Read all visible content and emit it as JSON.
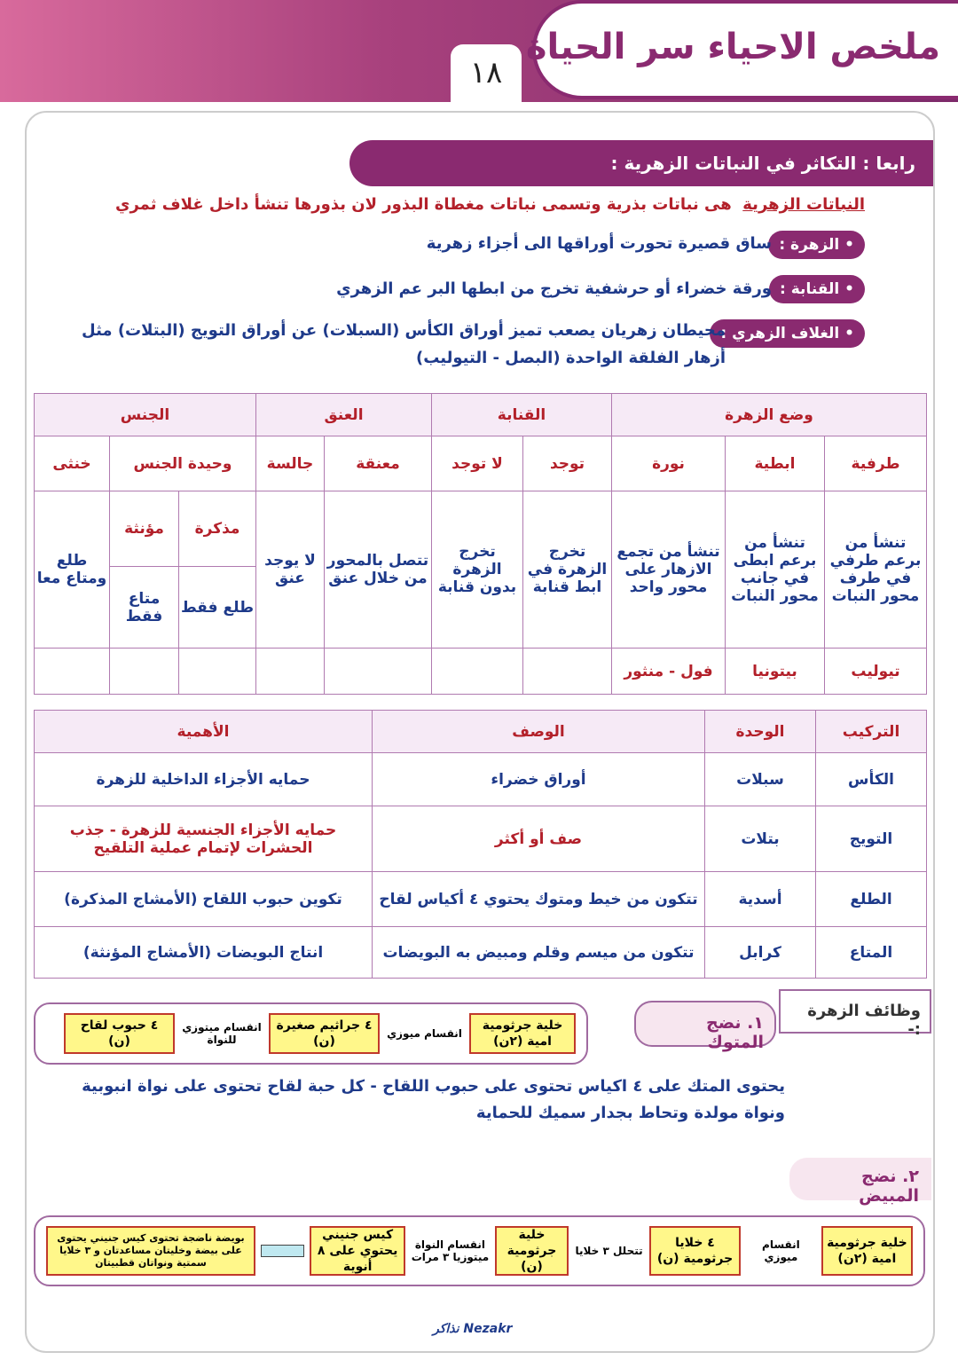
{
  "header": {
    "title": "ملخص الاحياء سر الحياة",
    "page_number": "١٨"
  },
  "section": {
    "title": "رابعا : التكاثر في النباتات الزهرية :"
  },
  "definition": {
    "term": "النباتات الزهرية",
    "text": "هى نباتات بذرية وتسمى نباتات مغطاة البذور لان بذورها تنشأ داخل غلاف ثمري"
  },
  "terms": [
    {
      "label": "• الزهرة :",
      "text": "ساق قصيرة تحورت أوراقها الى أجزاء زهرية"
    },
    {
      "label": "• القنابة :",
      "text": "ورقة خضراء أو حرشفية تخرج من ابطها البر عم الزهري"
    },
    {
      "label": "• الغلاف الزهري :",
      "text": "محيطان زهريان يصعب تميز أوراق الكأس (السبلات) عن أوراق التويج (البتلات) مثل",
      "text2": "أزهار الفلقة الواحدة (البصل - التيوليب)"
    }
  ],
  "table1": {
    "groups": [
      "وضع الزهرة",
      "القنابة",
      "العنق",
      "الجنس"
    ],
    "sub": [
      "طرفية",
      "ابطية",
      "نورة",
      "توجد",
      "لا توجد",
      "معنقة",
      "جالسة",
      "وحيدة الجنس",
      "خنثى"
    ],
    "desc": [
      "تنشأ من برعم طرفي في طرف محور النبات",
      "تنشأ من برعم ابطى في جانب محور النبات",
      "تنشأ من تجمع الازهار على محور واحد",
      "تخرج الزهرة في ابط قنابة",
      "تخرج الزهرة بدون قنابة",
      "تتصل بالمحور من خلال عنق",
      "لا يوجد عنق",
      "مذكرة",
      "مؤنثة",
      "طلع ومتاع معا"
    ],
    "unisex": [
      "طلع فقط",
      "متاع فقط"
    ],
    "examples": [
      "تيوليب",
      "بيتونيا",
      "فول - منثور"
    ]
  },
  "table2": {
    "headers": [
      "التركيب",
      "الوحدة",
      "الوصف",
      "الأهمية"
    ],
    "rows": [
      [
        "الكأس",
        "سبلات",
        "أوراق خضراء",
        "حمايه الأجزاء الداخلية للزهرة"
      ],
      [
        "التويج",
        "بتلات",
        "صف أو أكثر",
        "حمايه الأجزاء الجنسية للزهرة - جذب الحشرات لإتمام عملية التلقيح"
      ],
      [
        "الطلع",
        "أسدية",
        "تتكون من خيط ومتوك يحتوي ٤ أكياس لقاح",
        "تكوين حبوب اللقاح (الأمشاج المذكرة)"
      ],
      [
        "المتاع",
        "كرابل",
        "تتكون من ميسم وقلم ومبيض به البويضات",
        "انتاج البويضات (الأمشاج المؤنثة)"
      ]
    ]
  },
  "functions": {
    "title": "وظائف الزهرة :-",
    "anther": "١. نضج المتوك",
    "anther_text": "يحتوى المتك على ٤ اكياس تحتوى على حبوب اللقاح - كل حبة لقاح تحتوى على نواة انبوبية",
    "anther_text2": "ونواة مولدة وتحاط بجدار سميك للحماية",
    "ovary": "٢. نضج المبيض"
  },
  "flow1": {
    "boxes": [
      "خلية جرثومية امية (٢ن)",
      "٤ جراثيم صغيرة (ن)",
      "٤ حبوب لقاح (ن)"
    ],
    "labels": [
      "انقسام ميوزي",
      "انقسام ميتوزي للنواة"
    ]
  },
  "flow2": {
    "boxes": [
      "خلية جرثومية امية (٢ن)",
      "٤ خلايا جرثومية (ن)",
      "خلية جرثومية (ن)",
      "كيس جنيني يحتوي على ٨ أنوية",
      "بويضة ناضجة تحتوى كيس جنيني يحتوى على بيضة وخليتان مساعدتان و ٣ خلايا سمتية ونواتان قطبيتان"
    ],
    "labels": [
      "انقسام ميوزي",
      "تتحلل ٣ خلايا",
      "انقسام النواة ميتوزيا ٣ مرات",
      ""
    ]
  },
  "logo": "Nezakr نذاكر"
}
